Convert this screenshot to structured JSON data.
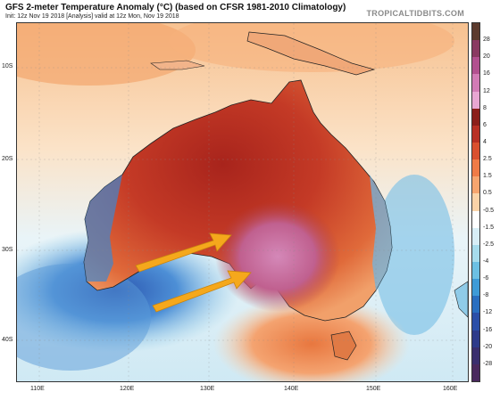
{
  "header": {
    "title": "GFS 2-meter Temperature Anomaly (°C) (based on CFSR 1981-2010 Climatology)",
    "subtitle": "Init: 12z Nov 19 2018   [Analysis]   valid at 12z Mon, Nov 19 2018",
    "brand": "TROPICALTIDBITS.COM"
  },
  "map": {
    "lat_labels": [
      "10S",
      "20S",
      "30S",
      "40S"
    ],
    "lon_labels": [
      "110E",
      "120E",
      "130E",
      "140E",
      "150E",
      "160E"
    ],
    "arrow_color": "#f5a81c"
  },
  "colorbar": {
    "ticks": [
      "28",
      "20",
      "16",
      "12",
      "8",
      "6",
      "4",
      "2.5",
      "1.5",
      "0.5",
      "-0.5",
      "-1.5",
      "-2.5",
      "-4",
      "-6",
      "-8",
      "-12",
      "-16",
      "-20",
      "-28"
    ],
    "colors": [
      "#5c3b2e",
      "#8a3a62",
      "#b2508f",
      "#d27bb5",
      "#e8a6d2",
      "#8b1f1a",
      "#b83024",
      "#d9502f",
      "#ef7b47",
      "#f6a56f",
      "#fbd3a8",
      "#ffffff",
      "#d7eef6",
      "#a6dcec",
      "#6cc0e3",
      "#3e9bd7",
      "#2a6fc0",
      "#2b4fa8",
      "#2e3b8a",
      "#3a2f6e",
      "#4a2a5e"
    ]
  }
}
